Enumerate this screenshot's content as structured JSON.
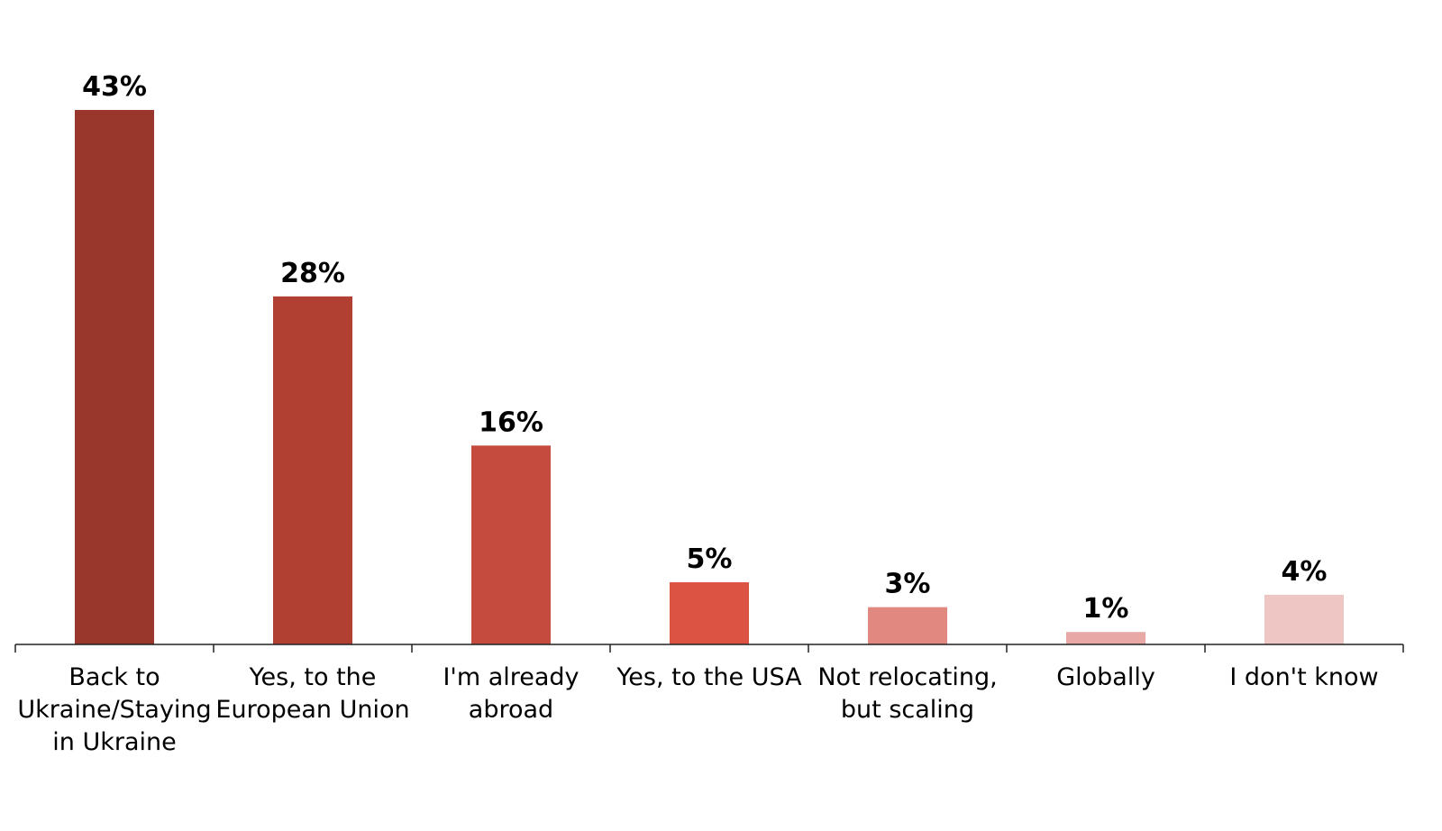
{
  "chart_data": {
    "type": "bar",
    "title": "",
    "xlabel": "",
    "ylabel": "",
    "ylim": [
      0,
      43
    ],
    "grid": false,
    "legend": "none",
    "categories": [
      [
        "Back to",
        "Ukraine/Staying",
        "in Ukraine"
      ],
      [
        "Yes, to the",
        "European Union"
      ],
      [
        "I'm already",
        "abroad"
      ],
      [
        "Yes, to the USA"
      ],
      [
        "Not relocating,",
        "but scaling"
      ],
      [
        "Globally"
      ],
      [
        "I don't know"
      ]
    ],
    "values": [
      43,
      28,
      16,
      5,
      3,
      1,
      4
    ],
    "value_labels": [
      "43%",
      "28%",
      "16%",
      "5%",
      "3%",
      "1%",
      "4%"
    ],
    "colors": [
      "#9a372c",
      "#b14032",
      "#c44b3d",
      "#dd5343",
      "#e18880",
      "#e8a9a6",
      "#eec6c4"
    ]
  }
}
